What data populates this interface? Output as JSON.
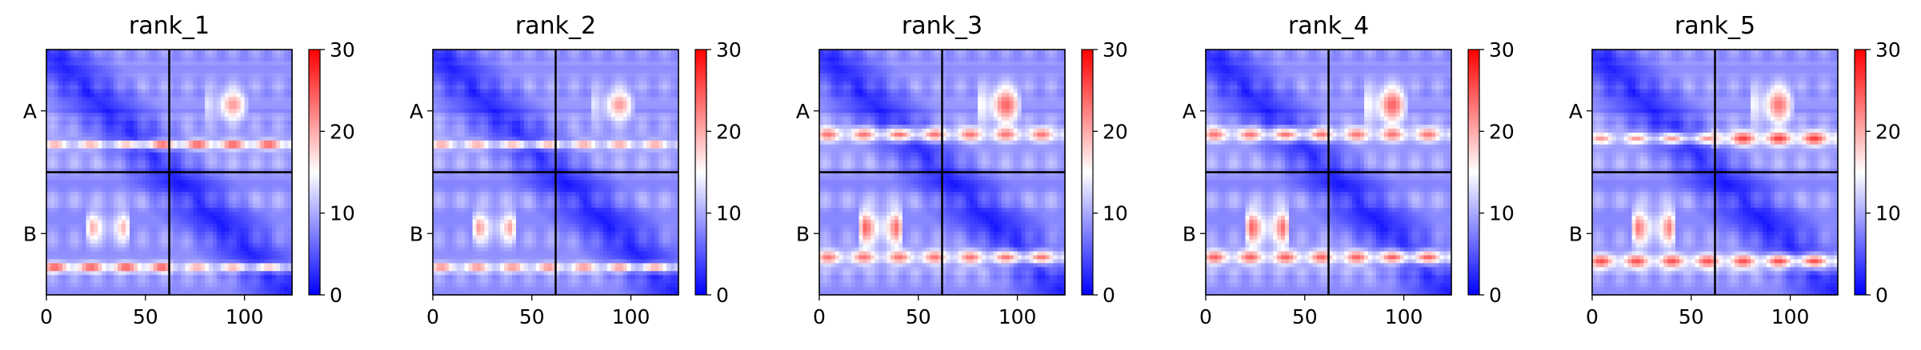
{
  "chart_data": {
    "type": "heatmap",
    "colormap": "bwr",
    "colorbar": {
      "min": 0,
      "max": 30,
      "ticks": [
        0,
        10,
        20,
        30
      ]
    },
    "x_ticks": [
      0,
      50,
      100
    ],
    "x_range": [
      0,
      124
    ],
    "chains": [
      {
        "label": "A",
        "start": 0,
        "end": 62
      },
      {
        "label": "B",
        "start": 62,
        "end": 124
      }
    ],
    "panels": [
      {
        "title": "rank_1",
        "features": [
          {
            "yc": 48,
            "x0": 48,
            "x1": 124,
            "v": 24,
            "h": 1.6
          },
          {
            "yc": 48,
            "x0": 0,
            "x1": 48,
            "v": 20,
            "h": 1.4
          },
          {
            "yc": 110,
            "x0": 0,
            "x1": 62,
            "v": 24,
            "h": 1.6
          },
          {
            "yc": 110,
            "x0": 62,
            "x1": 124,
            "v": 20,
            "h": 1.4
          },
          {
            "yc": 28,
            "x0": 82,
            "x1": 100,
            "v": 19,
            "h": 5
          },
          {
            "yc": 90,
            "x0": 22,
            "x1": 40,
            "v": 18,
            "h": 5
          }
        ]
      },
      {
        "title": "rank_2",
        "features": [
          {
            "yc": 48,
            "x0": 0,
            "x1": 124,
            "v": 20,
            "h": 1.5
          },
          {
            "yc": 110,
            "x0": 0,
            "x1": 124,
            "v": 21,
            "h": 1.5
          },
          {
            "yc": 28,
            "x0": 82,
            "x1": 100,
            "v": 19,
            "h": 5
          },
          {
            "yc": 90,
            "x0": 22,
            "x1": 40,
            "v": 19,
            "h": 5
          }
        ]
      },
      {
        "title": "rank_3",
        "features": [
          {
            "yc": 43,
            "x0": 0,
            "x1": 124,
            "v": 21,
            "h": 2.5
          },
          {
            "yc": 105,
            "x0": 0,
            "x1": 124,
            "v": 21,
            "h": 2.5
          },
          {
            "yc": 28,
            "x0": 82,
            "x1": 100,
            "v": 22,
            "h": 6
          },
          {
            "yc": 90,
            "x0": 22,
            "x1": 40,
            "v": 22,
            "h": 6
          }
        ]
      },
      {
        "title": "rank_4",
        "features": [
          {
            "yc": 43,
            "x0": 0,
            "x1": 124,
            "v": 21,
            "h": 2.5
          },
          {
            "yc": 105,
            "x0": 0,
            "x1": 124,
            "v": 22,
            "h": 2.5
          },
          {
            "yc": 28,
            "x0": 82,
            "x1": 100,
            "v": 22,
            "h": 6
          },
          {
            "yc": 90,
            "x0": 22,
            "x1": 40,
            "v": 22,
            "h": 6
          }
        ]
      },
      {
        "title": "rank_5",
        "features": [
          {
            "yc": 45,
            "x0": 62,
            "x1": 124,
            "v": 24,
            "h": 2.5
          },
          {
            "yc": 45,
            "x0": 0,
            "x1": 62,
            "v": 19,
            "h": 2
          },
          {
            "yc": 107,
            "x0": 0,
            "x1": 124,
            "v": 23,
            "h": 2.5
          },
          {
            "yc": 28,
            "x0": 82,
            "x1": 100,
            "v": 21,
            "h": 6
          },
          {
            "yc": 90,
            "x0": 22,
            "x1": 40,
            "v": 21,
            "h": 6
          }
        ]
      }
    ]
  }
}
